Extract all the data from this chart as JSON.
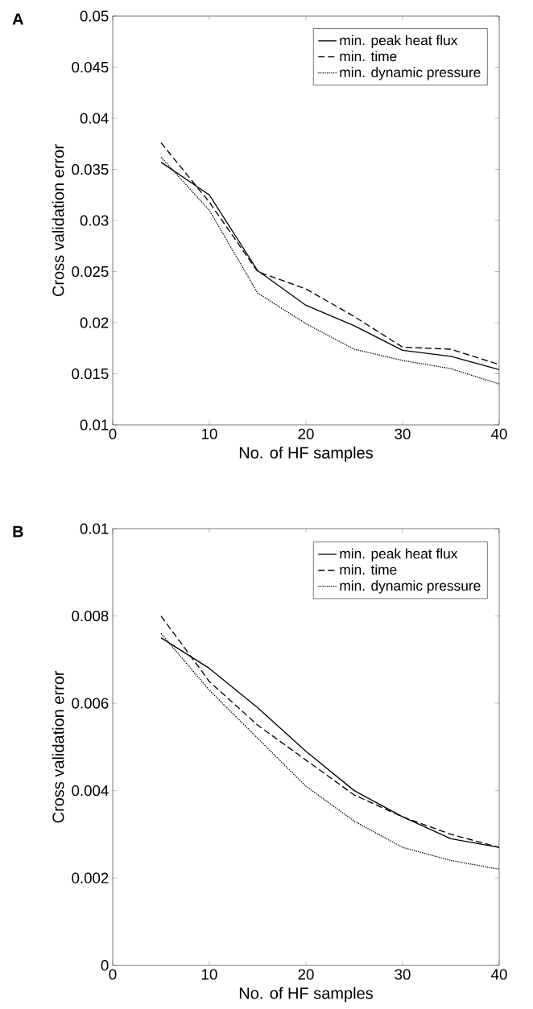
{
  "chart_data": [
    {
      "type": "line",
      "title": "A",
      "xlabel": "No. of HF samples",
      "ylabel": "Cross validation error",
      "x": [
        5,
        10,
        15,
        20,
        25,
        30,
        35,
        40
      ],
      "series": [
        {
          "name": "min. peak heat flux",
          "color": "#000000",
          "line_style": "solid",
          "values": [
            0.0357,
            0.0325,
            0.0251,
            0.0217,
            0.0197,
            0.0173,
            0.0167,
            0.0154
          ]
        },
        {
          "name": "min. time",
          "color": "#000000",
          "line_style": "dashed",
          "values": [
            0.0376,
            0.0318,
            0.025,
            0.0233,
            0.0206,
            0.0176,
            0.0174,
            0.0159
          ]
        },
        {
          "name": "min. dynamic pressure",
          "color": "#000000",
          "line_style": "dotted",
          "values": [
            0.0362,
            0.031,
            0.0229,
            0.0199,
            0.0174,
            0.0163,
            0.0155,
            0.014
          ]
        }
      ],
      "xlim": [
        0,
        40
      ],
      "xticks": [
        0,
        10,
        20,
        30,
        40
      ],
      "ylim": [
        0.01,
        0.05
      ],
      "yticks": [
        0.01,
        0.015,
        0.02,
        0.025,
        0.03,
        0.035,
        0.04,
        0.045,
        0.05
      ],
      "grid": false,
      "legend": "top right"
    },
    {
      "type": "line",
      "title": "B",
      "xlabel": "No. of HF samples",
      "ylabel": "Cross validation error",
      "x": [
        5,
        10,
        15,
        20,
        25,
        30,
        35,
        40
      ],
      "series": [
        {
          "name": "min. peak heat flux",
          "color": "#000000",
          "line_style": "solid",
          "values": [
            0.0075,
            0.0068,
            0.0059,
            0.0049,
            0.004,
            0.0034,
            0.0029,
            0.0027
          ]
        },
        {
          "name": "min. time",
          "color": "#000000",
          "line_style": "dashed",
          "values": [
            0.008,
            0.0065,
            0.0055,
            0.0047,
            0.0039,
            0.0034,
            0.003,
            0.0027
          ]
        },
        {
          "name": "min. dynamic pressure",
          "color": "#000000",
          "line_style": "dotted",
          "values": [
            0.0076,
            0.0063,
            0.0052,
            0.0041,
            0.0033,
            0.0027,
            0.0024,
            0.0022
          ]
        }
      ],
      "xlim": [
        0,
        40
      ],
      "xticks": [
        0,
        10,
        20,
        30,
        40
      ],
      "ylim": [
        0,
        0.01
      ],
      "yticks": [
        0,
        0.002,
        0.004,
        0.006,
        0.008,
        0.01
      ],
      "grid": false,
      "legend": "top right"
    }
  ]
}
